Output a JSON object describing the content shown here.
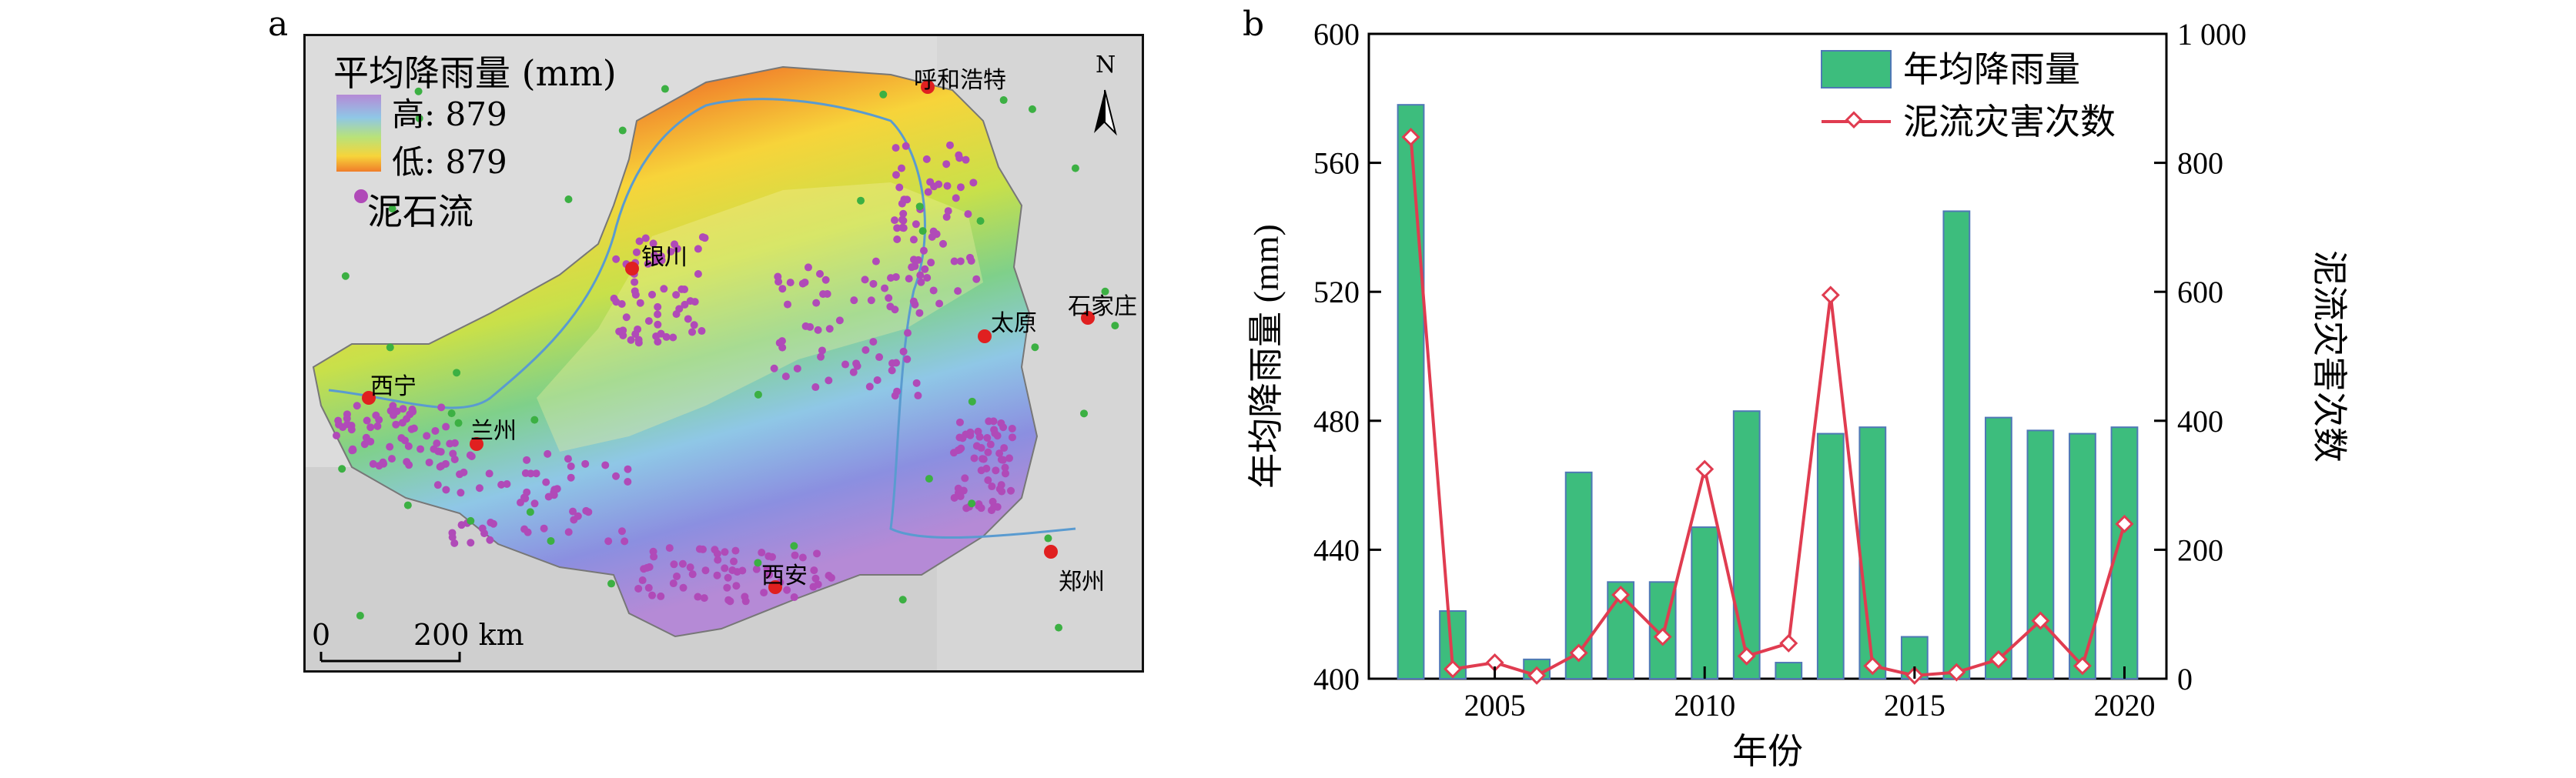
{
  "panel_a": {
    "letter": "a",
    "legend_title": "平均降雨量 (mm)",
    "legend_high": "高: 879",
    "legend_low": "低: 879",
    "legend_points": "泥石流",
    "scale_zero": "0",
    "scale_label": "200 km",
    "north": "N",
    "cities": [
      "呼和浩特",
      "银川",
      "太原",
      "石家庄",
      "西宁",
      "兰州",
      "西安",
      "郑州"
    ],
    "colors": {
      "city": "#e02020",
      "debris": "#b04ab8",
      "station": "#3cb043"
    }
  },
  "panel_b": {
    "letter": "b"
  },
  "chart_data": {
    "type": "bar",
    "xlabel": "年份",
    "ylabel": "年均降雨量 (mm)",
    "y2label": "泥流灾害次数",
    "x": [
      2003,
      2004,
      2005,
      2006,
      2007,
      2008,
      2009,
      2010,
      2011,
      2012,
      2013,
      2014,
      2015,
      2016,
      2017,
      2018,
      2019,
      2020
    ],
    "xticks": [
      "2005",
      "2010",
      "2015",
      "2020"
    ],
    "ylim": [
      400,
      600
    ],
    "yticks": [
      "400",
      "440",
      "480",
      "520",
      "560",
      "600"
    ],
    "y2lim": [
      0,
      1000
    ],
    "y2ticks": [
      "0",
      "200",
      "400",
      "600",
      "800",
      "1 000"
    ],
    "legend_position": "top-right",
    "series": [
      {
        "name": "年均降雨量",
        "type": "bar",
        "axis": "left",
        "color": "#3dbd7d",
        "values": [
          578,
          421,
          400,
          406,
          464,
          430,
          430,
          447,
          483,
          405,
          476,
          478,
          413,
          545,
          481,
          477,
          476,
          478
        ]
      },
      {
        "name": "泥流灾害次数",
        "type": "line",
        "axis": "right",
        "color": "#e03c50",
        "values": [
          840,
          15,
          25,
          5,
          40,
          130,
          65,
          325,
          35,
          55,
          595,
          20,
          5,
          10,
          30,
          90,
          20,
          240
        ]
      }
    ]
  }
}
